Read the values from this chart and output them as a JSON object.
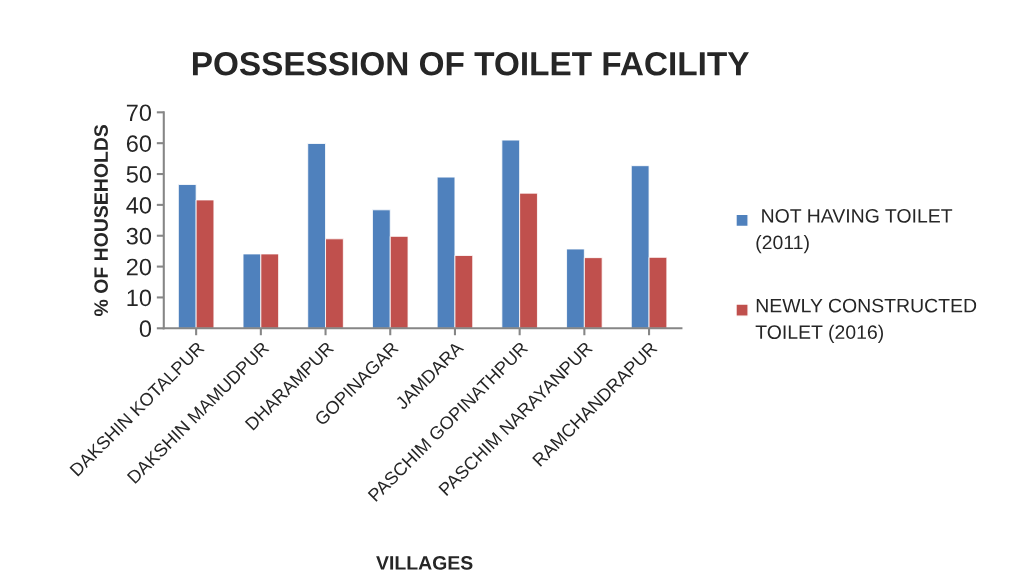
{
  "chart_data": {
    "type": "bar",
    "title": "POSSESSION OF TOILET FACILITY",
    "xlabel": "VILLAGES",
    "ylabel": "% OF HOUSEHOLDS",
    "categories": [
      "DAKSHIN KOTALPUR",
      "DAKSHIN MAMUDPUR",
      "DHARAMPUR",
      "GOPINAGAR",
      "JAMDARA",
      "PASCHIM GOPINATHPUR",
      "PASCHIM NARAYANPUR",
      "RAMCHANDRAPUR"
    ],
    "series": [
      {
        "name": " NOT HAVING TOILET (2011)",
        "color": "#4f81bd",
        "values": [
          46.6,
          24.1,
          59.9,
          38.4,
          49.0,
          61.0,
          25.7,
          52.7
        ]
      },
      {
        "name": "NEWLY CONSTRUCTED TOILET (2016)",
        "color": "#c0504d",
        "values": [
          41.6,
          24.1,
          29.0,
          29.8,
          23.6,
          43.8,
          22.9,
          23.0
        ]
      }
    ],
    "ylim": [
      0,
      70
    ],
    "yticks": [
      0,
      10,
      20,
      30,
      40,
      50,
      60,
      70
    ],
    "grid": false,
    "legend": "right"
  }
}
